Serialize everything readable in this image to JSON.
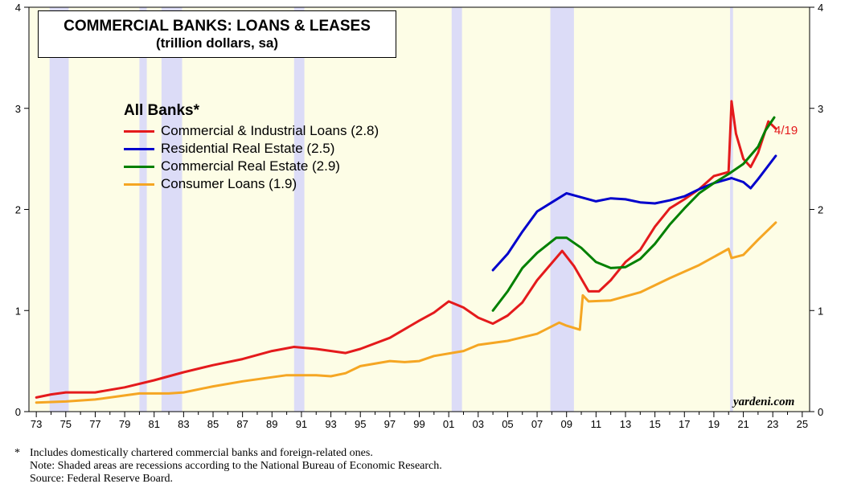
{
  "chart_data": {
    "type": "line",
    "title": "COMMERCIAL BANKS: LOANS & LEASES",
    "subtitle": "(trillion dollars, sa)",
    "xlim": [
      1972.5,
      2025.5
    ],
    "ylim": [
      0,
      4
    ],
    "yticks": [
      "0",
      "1",
      "2",
      "3",
      "4"
    ],
    "xtick_labels": [
      "73",
      "75",
      "77",
      "79",
      "81",
      "83",
      "85",
      "87",
      "89",
      "91",
      "93",
      "95",
      "97",
      "99",
      "01",
      "03",
      "05",
      "07",
      "09",
      "11",
      "13",
      "15",
      "17",
      "19",
      "21",
      "23",
      "25"
    ],
    "grid": false,
    "legend_title": "All Banks*",
    "legend_position": "top-left",
    "recessions": [
      [
        1973.9,
        1975.2
      ],
      [
        1980.0,
        1980.5
      ],
      [
        1981.5,
        1982.9
      ],
      [
        1990.5,
        1991.2
      ],
      [
        2001.2,
        2001.9
      ],
      [
        2007.9,
        2009.5
      ],
      [
        2020.1,
        2020.3
      ]
    ],
    "series": [
      {
        "name": "Commercial & Industrial Loans (2.8)",
        "color": "#e41a1c",
        "points": [
          [
            1973,
            0.14
          ],
          [
            1974,
            0.17
          ],
          [
            1975,
            0.19
          ],
          [
            1977,
            0.19
          ],
          [
            1979,
            0.24
          ],
          [
            1981,
            0.31
          ],
          [
            1983,
            0.39
          ],
          [
            1985,
            0.46
          ],
          [
            1987,
            0.52
          ],
          [
            1989,
            0.6
          ],
          [
            1990.5,
            0.64
          ],
          [
            1992,
            0.62
          ],
          [
            1994,
            0.58
          ],
          [
            1995,
            0.62
          ],
          [
            1997,
            0.73
          ],
          [
            1999,
            0.9
          ],
          [
            2000,
            0.98
          ],
          [
            2001,
            1.09
          ],
          [
            2002,
            1.03
          ],
          [
            2003,
            0.93
          ],
          [
            2004,
            0.87
          ],
          [
            2005,
            0.95
          ],
          [
            2006,
            1.08
          ],
          [
            2007,
            1.3
          ],
          [
            2008.7,
            1.59
          ],
          [
            2009.5,
            1.44
          ],
          [
            2010.5,
            1.19
          ],
          [
            2011.2,
            1.19
          ],
          [
            2012,
            1.3
          ],
          [
            2013,
            1.48
          ],
          [
            2014,
            1.6
          ],
          [
            2015,
            1.83
          ],
          [
            2016,
            2.01
          ],
          [
            2017,
            2.1
          ],
          [
            2018,
            2.2
          ],
          [
            2019,
            2.33
          ],
          [
            2020,
            2.37
          ],
          [
            2020.2,
            3.07
          ],
          [
            2020.5,
            2.75
          ],
          [
            2021,
            2.5
          ],
          [
            2021.5,
            2.42
          ],
          [
            2022,
            2.56
          ],
          [
            2022.7,
            2.87
          ],
          [
            2023.2,
            2.8
          ]
        ],
        "end_label": "4/19"
      },
      {
        "name": "Residential Real Estate (2.5)",
        "color": "#0000cc",
        "points": [
          [
            2004,
            1.4
          ],
          [
            2005,
            1.56
          ],
          [
            2006,
            1.78
          ],
          [
            2007,
            1.98
          ],
          [
            2008,
            2.07
          ],
          [
            2009,
            2.16
          ],
          [
            2010,
            2.12
          ],
          [
            2011,
            2.08
          ],
          [
            2012,
            2.11
          ],
          [
            2013,
            2.1
          ],
          [
            2014,
            2.07
          ],
          [
            2015,
            2.06
          ],
          [
            2016,
            2.09
          ],
          [
            2017,
            2.13
          ],
          [
            2018,
            2.2
          ],
          [
            2019,
            2.26
          ],
          [
            2020.2,
            2.31
          ],
          [
            2021,
            2.27
          ],
          [
            2021.5,
            2.21
          ],
          [
            2022,
            2.3
          ],
          [
            2023.2,
            2.53
          ]
        ]
      },
      {
        "name": "Commercial Real Estate (2.9)",
        "color": "#008000",
        "points": [
          [
            2004,
            1.0
          ],
          [
            2005,
            1.19
          ],
          [
            2006,
            1.42
          ],
          [
            2007,
            1.57
          ],
          [
            2008.3,
            1.72
          ],
          [
            2009,
            1.72
          ],
          [
            2010,
            1.62
          ],
          [
            2011,
            1.48
          ],
          [
            2012,
            1.42
          ],
          [
            2013,
            1.43
          ],
          [
            2014,
            1.51
          ],
          [
            2015,
            1.66
          ],
          [
            2016,
            1.85
          ],
          [
            2017,
            2.01
          ],
          [
            2018,
            2.16
          ],
          [
            2019,
            2.26
          ],
          [
            2020,
            2.35
          ],
          [
            2021,
            2.45
          ],
          [
            2022,
            2.62
          ],
          [
            2022.5,
            2.78
          ],
          [
            2023.1,
            2.91
          ]
        ]
      },
      {
        "name": "Consumer Loans (1.9)",
        "color": "#f5a623",
        "points": [
          [
            1973,
            0.09
          ],
          [
            1975,
            0.1
          ],
          [
            1977,
            0.12
          ],
          [
            1979,
            0.16
          ],
          [
            1980,
            0.18
          ],
          [
            1982,
            0.18
          ],
          [
            1983,
            0.19
          ],
          [
            1985,
            0.25
          ],
          [
            1987,
            0.3
          ],
          [
            1989,
            0.34
          ],
          [
            1990,
            0.36
          ],
          [
            1992,
            0.36
          ],
          [
            1993,
            0.35
          ],
          [
            1994,
            0.38
          ],
          [
            1995,
            0.45
          ],
          [
            1997,
            0.5
          ],
          [
            1998,
            0.49
          ],
          [
            1999,
            0.5
          ],
          [
            2000,
            0.55
          ],
          [
            2002,
            0.6
          ],
          [
            2003,
            0.66
          ],
          [
            2005,
            0.7
          ],
          [
            2007,
            0.77
          ],
          [
            2008.5,
            0.88
          ],
          [
            2009,
            0.85
          ],
          [
            2009.9,
            0.81
          ],
          [
            2010.1,
            1.15
          ],
          [
            2010.5,
            1.09
          ],
          [
            2012,
            1.1
          ],
          [
            2014,
            1.18
          ],
          [
            2016,
            1.32
          ],
          [
            2018,
            1.45
          ],
          [
            2020,
            1.61
          ],
          [
            2020.2,
            1.52
          ],
          [
            2021,
            1.55
          ],
          [
            2022,
            1.7
          ],
          [
            2023.2,
            1.87
          ]
        ]
      }
    ],
    "source_label": "yardeni.com"
  },
  "footnotes": {
    "star": "*",
    "line1": "Includes domestically chartered commercial banks and foreign-related ones.",
    "line2": "Note: Shaded areas are recessions according to the National Bureau of Economic Research.",
    "line3": "Source: Federal Reserve Board."
  }
}
